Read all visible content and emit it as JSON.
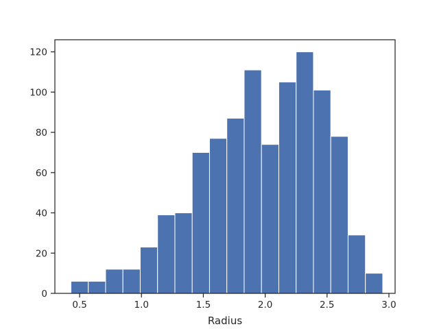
{
  "chart_data": {
    "type": "bar",
    "title": "",
    "xlabel": "Radius",
    "ylabel": "",
    "xlim": [
      0.3,
      3.05
    ],
    "ylim": [
      0,
      126
    ],
    "xticks": [
      0.5,
      1.0,
      1.5,
      2.0,
      2.5,
      3.0
    ],
    "xtick_labels": [
      "0.5",
      "1.0",
      "1.5",
      "2.0",
      "2.5",
      "3.0"
    ],
    "yticks": [
      0,
      20,
      40,
      60,
      80,
      100,
      120
    ],
    "ytick_labels": [
      "0",
      "20",
      "40",
      "60",
      "80",
      "100",
      "120"
    ],
    "bin_edges": [
      0.43,
      0.57,
      0.71,
      0.85,
      0.99,
      1.13,
      1.27,
      1.41,
      1.55,
      1.69,
      1.83,
      1.97,
      2.11,
      2.25,
      2.39,
      2.53,
      2.67,
      2.81,
      2.95
    ],
    "values": [
      6,
      6,
      12,
      12,
      23,
      39,
      40,
      70,
      77,
      87,
      111,
      74,
      105,
      120,
      101,
      78,
      29,
      10
    ],
    "bar_color": "#4c72b0",
    "bar_edge_color": "#ffffff",
    "grid": false,
    "legend": "none"
  }
}
